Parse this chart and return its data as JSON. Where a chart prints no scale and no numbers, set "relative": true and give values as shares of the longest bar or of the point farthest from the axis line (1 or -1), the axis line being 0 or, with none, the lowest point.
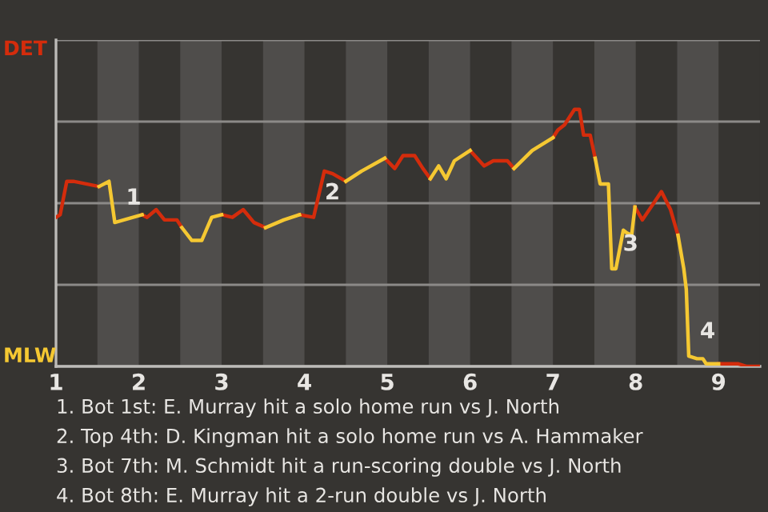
{
  "chart_data": {
    "type": "line",
    "relative": true,
    "x": [
      1.0,
      1.05,
      1.13,
      1.21,
      1.52,
      1.64,
      1.71,
      2.04,
      2.1,
      2.21,
      2.31,
      2.46,
      2.52,
      2.64,
      2.76,
      2.88,
      3.0,
      3.13,
      3.26,
      3.39,
      3.53,
      3.75,
      3.94,
      4.11,
      4.24,
      4.34,
      4.5,
      4.69,
      4.97,
      5.09,
      5.19,
      5.33,
      5.43,
      5.52,
      5.62,
      5.71,
      5.81,
      6.0,
      6.17,
      6.28,
      6.45,
      6.53,
      6.75,
      7.0,
      7.06,
      7.14,
      7.26,
      7.32,
      7.37,
      7.45,
      7.51,
      7.57,
      7.67,
      7.71,
      7.76,
      7.85,
      7.89,
      7.95,
      7.99,
      8.08,
      8.31,
      8.42,
      8.51,
      8.58,
      8.61,
      8.64,
      8.74,
      8.81,
      8.85,
      9.0,
      9.24,
      9.34,
      9.5
    ],
    "series": [
      {
        "name": "DET",
        "color": "#d42c0c",
        "values": [
          0.58,
          0.59,
          0.72,
          0.72,
          0.7,
          null,
          null,
          0.59,
          0.58,
          0.61,
          0.57,
          0.57,
          0.54,
          null,
          null,
          null,
          0.59,
          0.58,
          0.61,
          0.56,
          0.54,
          null,
          0.59,
          0.58,
          0.76,
          0.75,
          0.72,
          null,
          0.81,
          0.77,
          0.82,
          0.82,
          0.77,
          0.73,
          null,
          null,
          null,
          0.84,
          0.78,
          0.8,
          0.8,
          0.77,
          null,
          0.89,
          0.92,
          0.94,
          1,
          1,
          0.9,
          0.9,
          0.81,
          null,
          null,
          null,
          null,
          null,
          null,
          null,
          0.62,
          0.57,
          0.68,
          0.61,
          0.51,
          null,
          null,
          null,
          null,
          null,
          null,
          0.01,
          0.01,
          0,
          0
        ]
      },
      {
        "name": "MLW",
        "color": "#f5c832",
        "values": [
          null,
          null,
          null,
          null,
          0.7,
          0.72,
          0.56,
          0.59,
          null,
          null,
          null,
          null,
          0.54,
          0.49,
          0.49,
          0.58,
          0.59,
          null,
          null,
          null,
          0.54,
          0.57,
          0.59,
          null,
          null,
          null,
          0.72,
          0.76,
          0.81,
          null,
          null,
          null,
          null,
          0.73,
          0.78,
          0.73,
          0.8,
          0.84,
          null,
          null,
          null,
          0.77,
          0.84,
          0.89,
          null,
          null,
          null,
          null,
          null,
          null,
          0.81,
          0.71,
          0.71,
          0.38,
          0.38,
          0.53,
          0.52,
          0.51,
          0.62,
          null,
          null,
          null,
          0.51,
          0.38,
          0.3,
          0.04,
          0.03,
          0.03,
          0.01,
          0.01,
          null,
          null,
          null
        ]
      }
    ],
    "xlim": [
      1,
      9.5
    ],
    "xticks": [
      1,
      2,
      3,
      4,
      5,
      6,
      7,
      8,
      9
    ],
    "grid": "y",
    "bands": [
      {
        "axis": "x",
        "from": 1.5,
        "to": 2,
        "color": "#4f4d4b"
      },
      {
        "axis": "x",
        "from": 2.5,
        "to": 3,
        "color": "#4f4d4b"
      },
      {
        "axis": "x",
        "from": 3.5,
        "to": 4,
        "color": "#4f4d4b"
      },
      {
        "axis": "x",
        "from": 4.5,
        "to": 5,
        "color": "#4f4d4b"
      },
      {
        "axis": "x",
        "from": 5.5,
        "to": 6,
        "color": "#4f4d4b"
      },
      {
        "axis": "x",
        "from": 6.5,
        "to": 7,
        "color": "#4f4d4b"
      },
      {
        "axis": "x",
        "from": 7.5,
        "to": 8,
        "color": "#4f4d4b"
      },
      {
        "axis": "x",
        "from": 8.5,
        "to": 9,
        "color": "#4f4d4b"
      }
    ],
    "annotations": [
      {
        "text": "1",
        "x": 1.71,
        "y": 0.56
      },
      {
        "text": "2",
        "x": 4.11,
        "y": 0.58
      },
      {
        "text": "3",
        "x": 7.71,
        "y": 0.38
      },
      {
        "text": "4",
        "x": 8.64,
        "y": 0.04
      },
      "1. Bot 1st: E. Murray hit a solo home run vs J. North",
      "2. Top 4th: D. Kingman hit a solo home run vs A. Hammaker",
      "3. Bot 7th: M. Schmidt hit a run-scoring double vs J. North",
      "4. Bot 8th: E. Murray hit a 2-run double vs J. North"
    ]
  }
}
